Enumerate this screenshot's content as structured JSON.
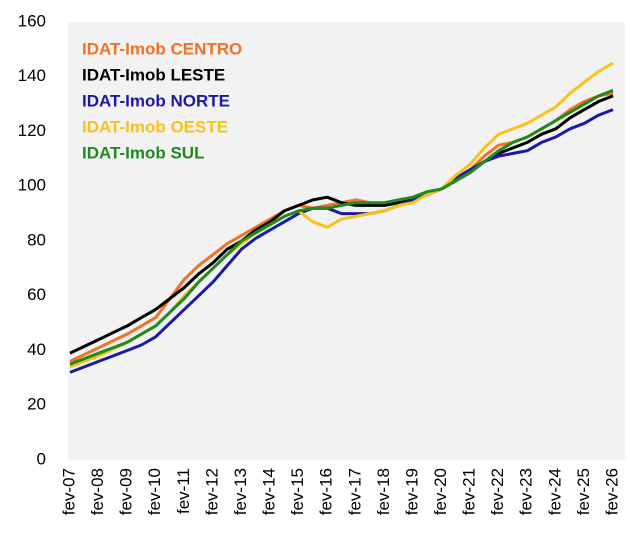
{
  "chart_data": {
    "type": "line",
    "categories": [
      "fev-07",
      null,
      "fev-08",
      null,
      "fev-09",
      null,
      "fev-10",
      null,
      "fev-11",
      null,
      "fev-12",
      null,
      "fev-13",
      null,
      "fev-14",
      null,
      "fev-15",
      null,
      "fev-16",
      null,
      "fev-17",
      null,
      "fev-18",
      null,
      "fev-19",
      null,
      "fev-20",
      null,
      "fev-21",
      null,
      "fev-22",
      null,
      "fev-23",
      null,
      "fev-24",
      null,
      "fev-25",
      null,
      "fev-26"
    ],
    "series": [
      {
        "name": "IDAT-Imob CENTRO",
        "color": "#f07222",
        "values": [
          36,
          38.5,
          41,
          43.5,
          46,
          49,
          52,
          59,
          66,
          71,
          75,
          79,
          82,
          85,
          88,
          91,
          93,
          92,
          93,
          94,
          95,
          94,
          93,
          94,
          95,
          97,
          99,
          103,
          106,
          111,
          115,
          116,
          118,
          121,
          124,
          128,
          131,
          133,
          134
        ]
      },
      {
        "name": "IDAT-Imob LESTE",
        "color": "#000000",
        "values": [
          39,
          41.5,
          44,
          46.5,
          49,
          52,
          55,
          59,
          63,
          68,
          72,
          77,
          80,
          84,
          87,
          91,
          93,
          95,
          96,
          94,
          93,
          93,
          93,
          94,
          95,
          97,
          99,
          102,
          105,
          109,
          112,
          114,
          116,
          119,
          121,
          125,
          128,
          131,
          133
        ]
      },
      {
        "name": "IDAT-Imob NORTE",
        "color": "#1a1aa6",
        "values": [
          32,
          34,
          36,
          38,
          40,
          42,
          45,
          50,
          55,
          60,
          65,
          71,
          77,
          81,
          84,
          87,
          90,
          92,
          92,
          90,
          90,
          90,
          91,
          93,
          95,
          97,
          99,
          103,
          106,
          109,
          111,
          112,
          113,
          116,
          118,
          121,
          123,
          126,
          128
        ]
      },
      {
        "name": "IDAT-Imob OESTE",
        "color": "#f7c21a",
        "values": [
          34,
          36,
          38,
          40.5,
          43,
          46,
          49,
          54,
          60,
          65,
          70,
          75,
          79,
          83,
          86,
          89,
          91,
          87,
          85,
          88,
          89,
          90,
          91,
          93,
          94,
          97,
          99,
          104,
          108,
          114,
          119,
          121,
          123,
          126,
          129,
          134,
          138,
          142,
          145
        ]
      },
      {
        "name": "IDAT-Imob SUL",
        "color": "#1f8a1f",
        "values": [
          35,
          37,
          39,
          41,
          43,
          46,
          49,
          54,
          59,
          65,
          70,
          75,
          80,
          83,
          86,
          89,
          91,
          92,
          92,
          93,
          94,
          94,
          94,
          95,
          96,
          98,
          99,
          102,
          105,
          109,
          113,
          116,
          118,
          121,
          124,
          127,
          130,
          133,
          135
        ]
      }
    ],
    "ylim": [
      0,
      160
    ],
    "yticks": [
      0,
      20,
      40,
      60,
      80,
      100,
      120,
      140,
      160
    ],
    "grid": false,
    "legend": "top-left"
  }
}
